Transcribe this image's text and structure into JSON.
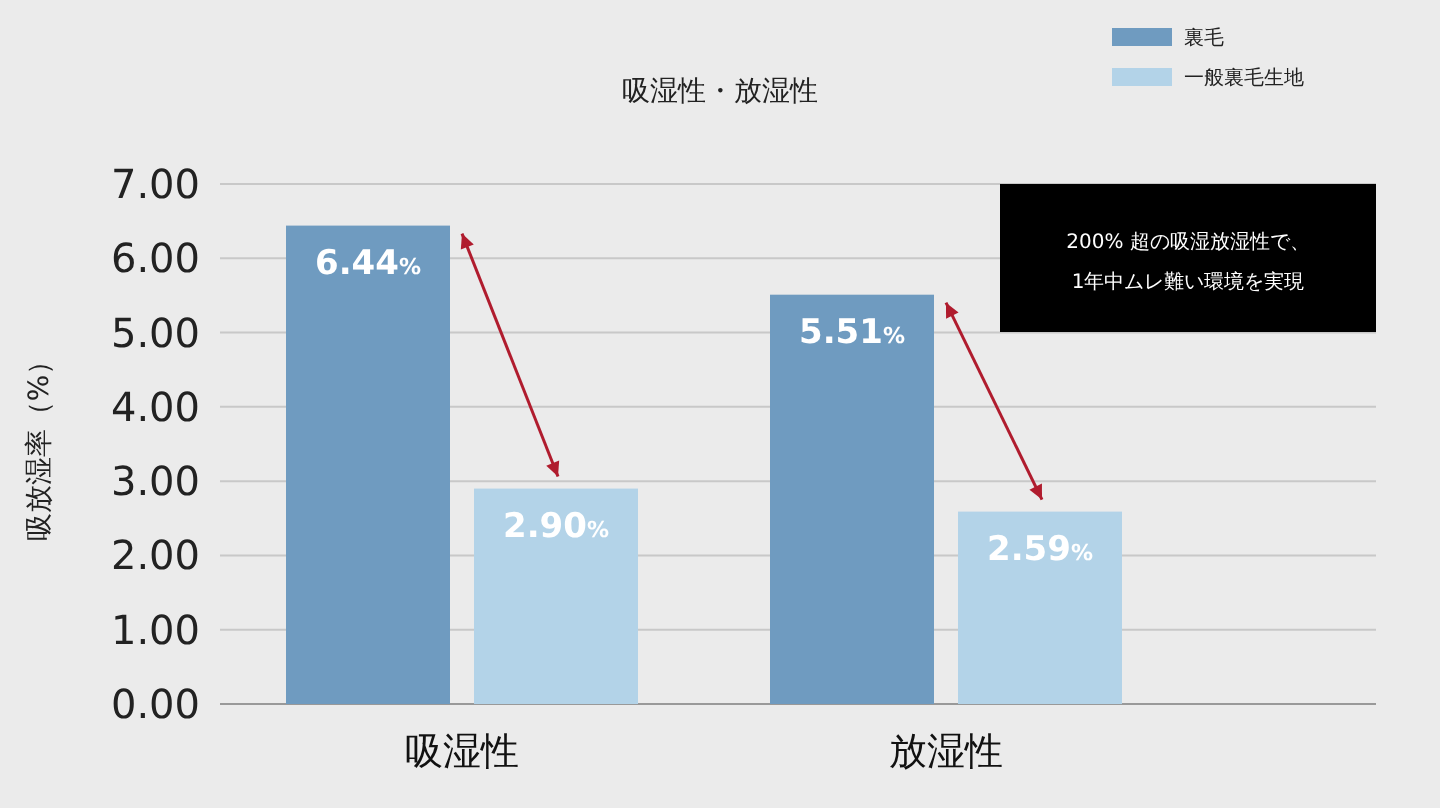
{
  "chart_data": {
    "type": "bar",
    "title": "吸湿性・放湿性",
    "ylabel": "吸放湿率（%）",
    "categories": [
      "吸湿性",
      "放湿性"
    ],
    "series": [
      {
        "name": "裏毛",
        "color": "#6f9bc0",
        "values": [
          6.44,
          5.51
        ],
        "value_labels": [
          "6.44%",
          "5.51%"
        ]
      },
      {
        "name": "一般裏毛生地",
        "color": "#b3d3e8",
        "values": [
          2.9,
          2.59
        ],
        "value_labels": [
          "2.90%",
          "2.59%"
        ]
      }
    ],
    "ylim": [
      0,
      7
    ],
    "yticks": [
      {
        "value": 0,
        "label": "0.00"
      },
      {
        "value": 1,
        "label": "1.00"
      },
      {
        "value": 2,
        "label": "2.00"
      },
      {
        "value": 3,
        "label": "3.00"
      },
      {
        "value": 4,
        "label": "4.00"
      },
      {
        "value": 5,
        "label": "5.00"
      },
      {
        "value": 6,
        "label": "6.00"
      },
      {
        "value": 7,
        "label": "7.00"
      }
    ],
    "grid": "y",
    "legend": "top right",
    "annotations": [
      "200% 超の吸湿放湿性で、\n1年中ムレ難い環境を実現"
    ]
  }
}
